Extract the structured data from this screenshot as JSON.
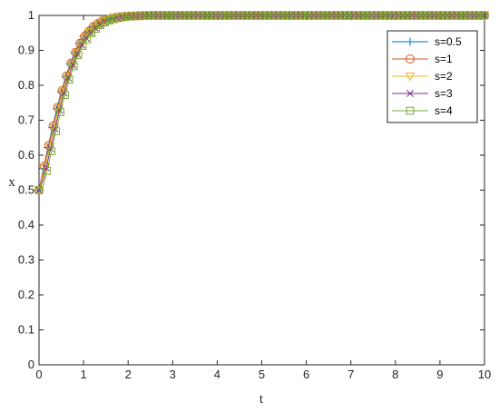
{
  "chart_data": {
    "type": "line",
    "title": "",
    "xlabel": "t",
    "ylabel": "x",
    "xlim": [
      0,
      10
    ],
    "ylim": [
      0,
      1
    ],
    "xticks": [
      "0",
      "1",
      "2",
      "3",
      "4",
      "5",
      "6",
      "7",
      "8",
      "9",
      "10"
    ],
    "yticks": [
      "0",
      "0.1",
      "0.2",
      "0.3",
      "0.4",
      "0.5",
      "0.6",
      "0.7",
      "0.8",
      "0.9",
      "1"
    ],
    "grid": false,
    "legend_position": "top-right",
    "x": [
      0,
      0.1,
      0.2,
      0.3,
      0.4,
      0.5,
      0.6,
      0.7,
      0.8,
      0.9,
      1.0,
      1.2,
      1.4,
      1.6,
      1.8,
      2.0,
      2.5,
      3,
      4,
      5,
      6,
      7,
      8,
      9,
      10
    ],
    "series": [
      {
        "name": "s=0.5",
        "color": "#0072BD",
        "marker": "plus",
        "values": [
          0.5,
          0.562,
          0.622,
          0.679,
          0.733,
          0.781,
          0.824,
          0.861,
          0.893,
          0.919,
          0.94,
          0.968,
          0.984,
          0.992,
          0.996,
          0.998,
          1.0,
          1.0,
          1.0,
          1.0,
          1.0,
          1.0,
          1.0,
          1.0,
          1.0
        ]
      },
      {
        "name": "s=1",
        "color": "#D95319",
        "marker": "circle",
        "values": [
          0.5,
          0.557,
          0.616,
          0.673,
          0.727,
          0.776,
          0.819,
          0.857,
          0.889,
          0.916,
          0.937,
          0.966,
          0.983,
          0.991,
          0.996,
          0.998,
          1.0,
          1.0,
          1.0,
          1.0,
          1.0,
          1.0,
          1.0,
          1.0,
          1.0
        ]
      },
      {
        "name": "s=2",
        "color": "#EDB120",
        "marker": "triangle-down",
        "values": [
          0.5,
          0.545,
          0.601,
          0.658,
          0.713,
          0.763,
          0.808,
          0.847,
          0.88,
          0.908,
          0.931,
          0.962,
          0.98,
          0.99,
          0.995,
          0.998,
          1.0,
          1.0,
          1.0,
          1.0,
          1.0,
          1.0,
          1.0,
          1.0,
          1.0
        ]
      },
      {
        "name": "s=3",
        "color": "#7E2F8E",
        "marker": "x",
        "values": [
          0.5,
          0.532,
          0.585,
          0.642,
          0.698,
          0.75,
          0.797,
          0.837,
          0.872,
          0.901,
          0.925,
          0.958,
          0.978,
          0.989,
          0.994,
          0.997,
          1.0,
          1.0,
          1.0,
          1.0,
          1.0,
          1.0,
          1.0,
          1.0,
          1.0
        ]
      },
      {
        "name": "s=4",
        "color": "#77AC30",
        "marker": "square",
        "values": [
          0.5,
          0.515,
          0.565,
          0.623,
          0.68,
          0.734,
          0.782,
          0.825,
          0.862,
          0.893,
          0.918,
          0.953,
          0.975,
          0.987,
          0.993,
          0.997,
          1.0,
          1.0,
          1.0,
          1.0,
          1.0,
          1.0,
          1.0,
          1.0,
          1.0
        ]
      }
    ]
  }
}
